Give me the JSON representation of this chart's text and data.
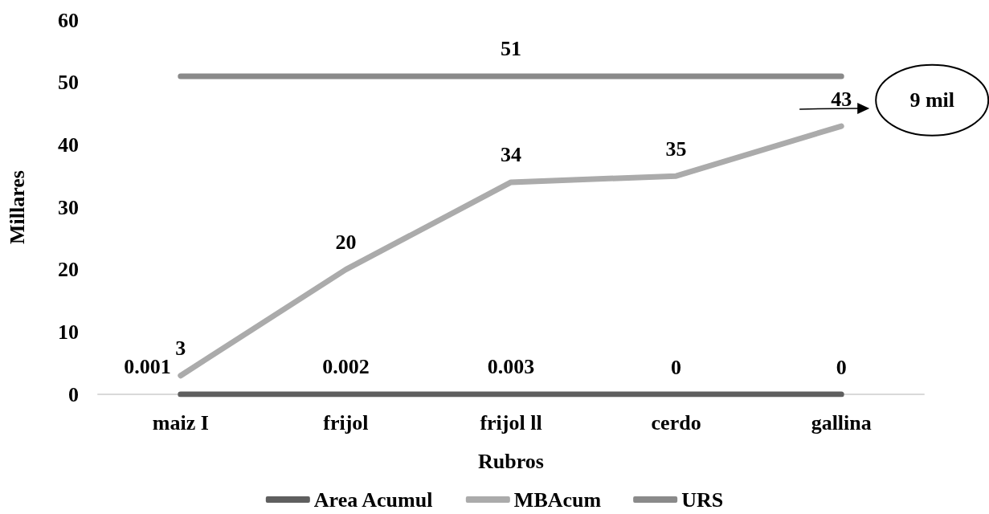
{
  "chart_data": {
    "type": "line",
    "xlabel": "Rubros",
    "ylabel": "Millares",
    "categories": [
      "maiz I",
      "frijol",
      "frijol ll",
      "cerdo",
      "gallina"
    ],
    "series": [
      {
        "name": "Area Acumul",
        "color": "#5f5f5f",
        "values": [
          0.001,
          0.002,
          0.003,
          0,
          0
        ],
        "value_labels": [
          "0.001",
          "0.002",
          "0.003",
          "0",
          "0"
        ]
      },
      {
        "name": "MBAcum",
        "color": "#ababab",
        "values": [
          3,
          20,
          34,
          35,
          43
        ],
        "value_labels": [
          "3",
          "20",
          "34",
          "35",
          "43"
        ]
      },
      {
        "name": "URS",
        "color": "#8a8a8a",
        "values": [
          51,
          51,
          51,
          51,
          51
        ],
        "value_labels": [
          null,
          null,
          "51",
          null,
          null
        ]
      }
    ],
    "ylim": [
      0,
      60
    ],
    "yticks": [
      0,
      10,
      20,
      30,
      40,
      50,
      60
    ],
    "legend": "bottom",
    "marker": "none",
    "line_style": "solid",
    "annotations": [
      "9 mil"
    ]
  }
}
